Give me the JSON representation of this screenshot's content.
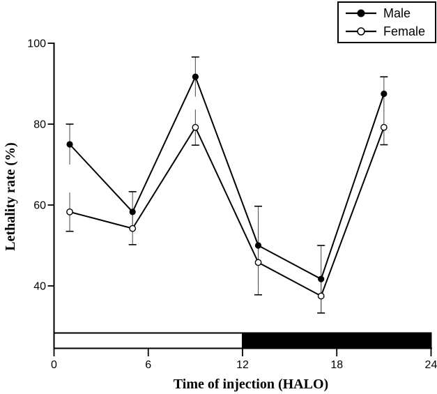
{
  "figure": {
    "background_color": "#ffffff",
    "foreground_color": "#000000"
  },
  "legend": {
    "position": "top-right",
    "border_color": "#000000",
    "items": [
      {
        "label": "Male",
        "marker": "filled-circle",
        "color": "#000000"
      },
      {
        "label": "Female",
        "marker": "open-circle",
        "color": "#000000"
      }
    ]
  },
  "chart_data": {
    "type": "line",
    "title": "",
    "xlabel": "Time of injection (HALO)",
    "ylabel": "Lethality rate (%)",
    "x": [
      1,
      5,
      9,
      13,
      17,
      21
    ],
    "series": [
      {
        "name": "Male",
        "marker": "filled-circle",
        "color": "#000000",
        "values": [
          75.0,
          58.3,
          91.7,
          50.0,
          41.7,
          87.5
        ],
        "errors": [
          5.0,
          5.0,
          4.9,
          9.7,
          8.3,
          4.2
        ],
        "error_cap": "top"
      },
      {
        "name": "Female",
        "marker": "open-circle",
        "color": "#000000",
        "values": [
          58.3,
          54.2,
          79.2,
          45.8,
          37.5,
          79.2
        ],
        "errors": [
          4.8,
          4.0,
          4.4,
          8.0,
          4.2,
          4.3
        ],
        "error_cap": "bottom"
      }
    ],
    "xticks": [
      0,
      6,
      12,
      18,
      24
    ],
    "yticks": [
      40,
      60,
      80,
      100
    ],
    "xlim": [
      0,
      24
    ],
    "ylim": [
      24.5,
      100
    ],
    "grid": false,
    "legend_position": "top-right",
    "photoperiod_bar": {
      "light_span": [
        0,
        12
      ],
      "dark_span": [
        12,
        24
      ],
      "light_color": "#ffffff",
      "dark_color": "#000000"
    }
  }
}
